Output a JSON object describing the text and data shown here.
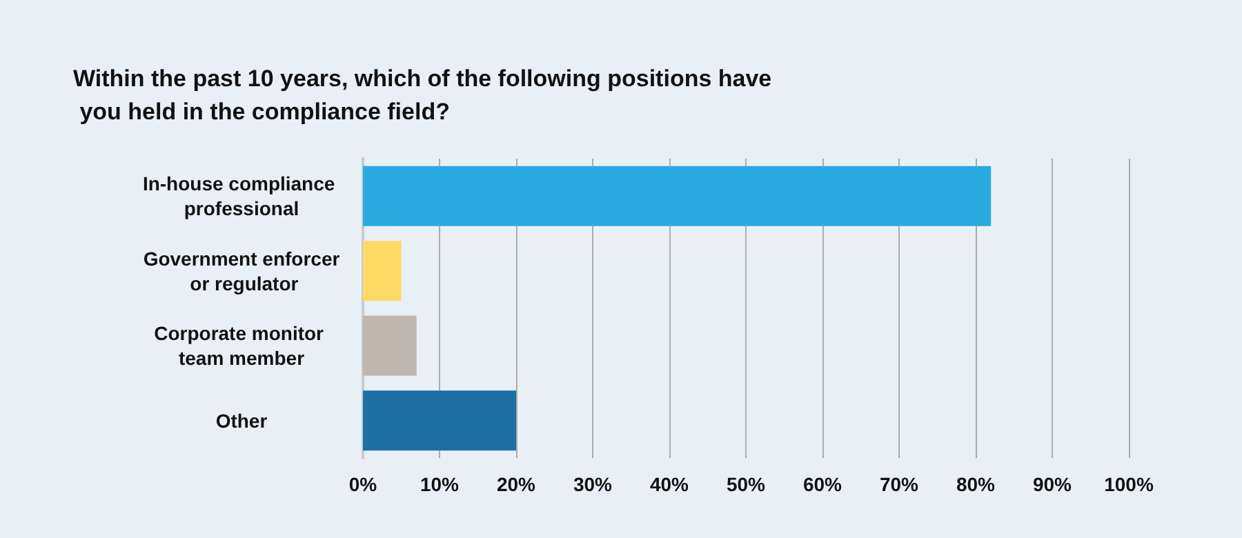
{
  "chart_data": {
    "type": "bar",
    "orientation": "horizontal",
    "title": "Within the past 10 years, which of the following positions have you held in the compliance field?",
    "categories": [
      "In-house compliance professional",
      "Government enforcer or regulator",
      "Corporate monitor team member",
      "Other"
    ],
    "values": [
      82,
      5,
      7,
      20
    ],
    "colors": [
      "#29abe2",
      "#ffd966",
      "#c0b8b0",
      "#1d6fa5"
    ],
    "xlim": [
      0,
      100
    ],
    "xticks": [
      {
        "value": 0,
        "label": "0%"
      },
      {
        "value": 10,
        "label": "10%"
      },
      {
        "value": 20,
        "label": "20%"
      },
      {
        "value": 30,
        "label": "30%"
      },
      {
        "value": 40,
        "label": "40%"
      },
      {
        "value": 50,
        "label": "50%"
      },
      {
        "value": 60,
        "label": "60%"
      },
      {
        "value": 70,
        "label": "70%"
      },
      {
        "value": 80,
        "label": "80%"
      },
      {
        "value": 90,
        "label": "90%"
      },
      {
        "value": 100,
        "label": "100%"
      }
    ],
    "grid": "x"
  }
}
